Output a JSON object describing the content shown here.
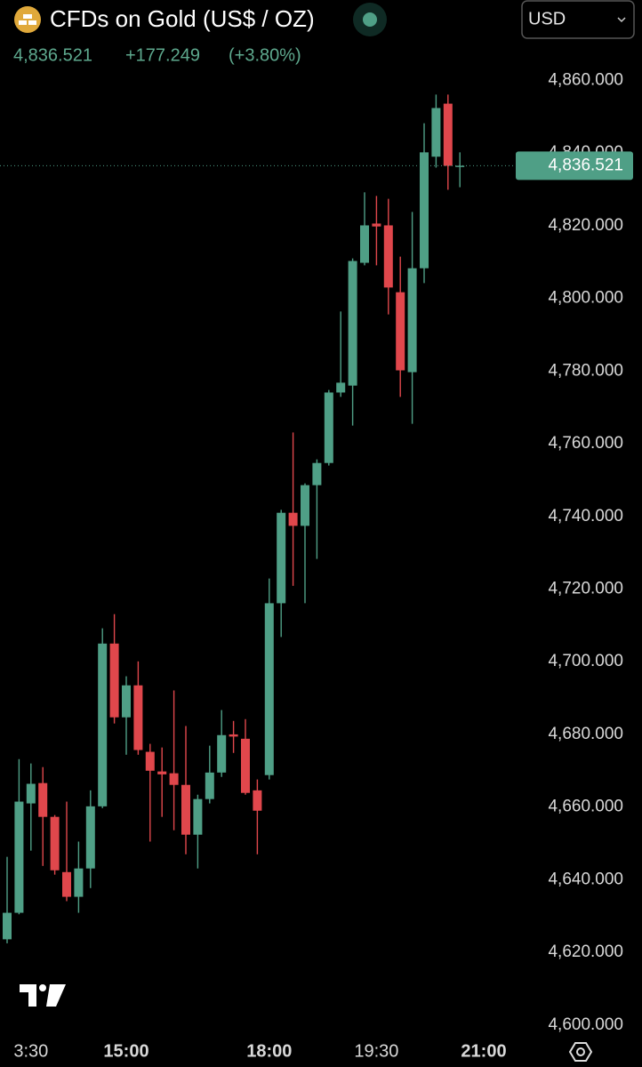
{
  "chart_data": {
    "type": "candlestick",
    "title": "CFDs on Gold (US$ / OZ)",
    "change": "+177.249",
    "change_percent": "(+3.80%)",
    "currency": "USD",
    "last_price": {
      "value": 4836.521,
      "label": "4,836.521"
    },
    "categories": [
      null,
      null,
      "3:30",
      null,
      null,
      null,
      null,
      null,
      null,
      null,
      "15:00",
      null,
      null,
      null,
      null,
      null,
      null,
      null,
      null,
      null,
      null,
      null,
      "18:00",
      null,
      null,
      null,
      null,
      null,
      null,
      null,
      null,
      "19:30",
      null,
      null,
      null,
      null,
      null,
      null,
      null,
      null,
      "21:00"
    ],
    "open": [
      4623.6,
      4630.9,
      4661.0,
      4666.6,
      4657.3,
      4642.1,
      4635.3,
      4643.1,
      4660.2,
      4705.0,
      4684.7,
      4693.5,
      4675.2,
      4669.8,
      4669.3,
      4666.1,
      4652.4,
      4662.2,
      4669.5,
      4680.0,
      4678.8,
      4664.6,
      4668.8,
      4716.1,
      4741.0,
      4737.4,
      4748.6,
      4754.7,
      4774.1,
      4776.0,
      4809.8,
      4820.6,
      4820.1,
      4801.7,
      4779.7,
      4808.3,
      4839.0,
      4853.6,
      4836.5,
      null,
      null
    ],
    "high": [
      4646.3,
      4673.2,
      4672.0,
      4671.0,
      4657.8,
      4661.5,
      4650.5,
      4664.6,
      4709.2,
      4713.1,
      4696.0,
      4700.1,
      4677.4,
      4676.4,
      4692.1,
      4682.3,
      4663.4,
      4676.9,
      4686.7,
      4683.7,
      4684.2,
      4667.6,
      4722.9,
      4741.8,
      4763.1,
      4749.1,
      4755.7,
      4774.8,
      4796.4,
      4811.0,
      4829.2,
      4828.2,
      4827.4,
      4811.5,
      4823.8,
      4848.2,
      4856.1,
      4856.1,
      4840.2,
      null,
      null
    ],
    "low": [
      4622.5,
      4630.5,
      4648.0,
      4643.8,
      4641.4,
      4634.1,
      4630.9,
      4637.7,
      4659.7,
      4683.0,
      4674.4,
      4674.4,
      4650.5,
      4657.3,
      4653.6,
      4647.0,
      4643.1,
      4661.0,
      4668.3,
      4674.9,
      4663.4,
      4647.0,
      4667.6,
      4706.8,
      4720.9,
      4716.1,
      4728.3,
      4754.0,
      4772.9,
      4765.0,
      4809.1,
      4809.1,
      4795.6,
      4772.9,
      4765.5,
      4804.2,
      4836.0,
      4829.9,
      4830.6,
      null,
      null
    ],
    "close": [
      4630.9,
      4661.5,
      4666.4,
      4657.3,
      4642.6,
      4635.3,
      4643.1,
      4660.2,
      4705.0,
      4684.7,
      4693.5,
      4675.7,
      4670.0,
      4669.0,
      4666.1,
      4652.4,
      4662.2,
      4669.5,
      4679.8,
      4679.4,
      4663.9,
      4659.0,
      4716.1,
      4741.0,
      4737.4,
      4748.6,
      4754.7,
      4774.1,
      4776.8,
      4810.3,
      4820.1,
      4819.8,
      4803.0,
      4780.2,
      4808.3,
      4840.2,
      4852.4,
      4836.5,
      4836.521,
      null,
      null
    ],
    "up_color": "#4f9f86",
    "down_color": "#e0474c",
    "ylim": [
      4598,
      4865
    ],
    "yticks": [
      {
        "value": 4600,
        "label": "4,600.000"
      },
      {
        "value": 4620,
        "label": "4,620.000"
      },
      {
        "value": 4640,
        "label": "4,640.000"
      },
      {
        "value": 4660,
        "label": "4,660.000"
      },
      {
        "value": 4680,
        "label": "4,680.000"
      },
      {
        "value": 4700,
        "label": "4,700.000"
      },
      {
        "value": 4720,
        "label": "4,720.000"
      },
      {
        "value": 4740,
        "label": "4,740.000"
      },
      {
        "value": 4760,
        "label": "4,760.000"
      },
      {
        "value": 4780,
        "label": "4,780.000"
      },
      {
        "value": 4800,
        "label": "4,800.000"
      },
      {
        "value": 4820,
        "label": "4,820.000"
      },
      {
        "value": 4840,
        "label": "4,840.000"
      },
      {
        "value": 4860,
        "label": "4,860.000"
      }
    ],
    "grid": false
  }
}
